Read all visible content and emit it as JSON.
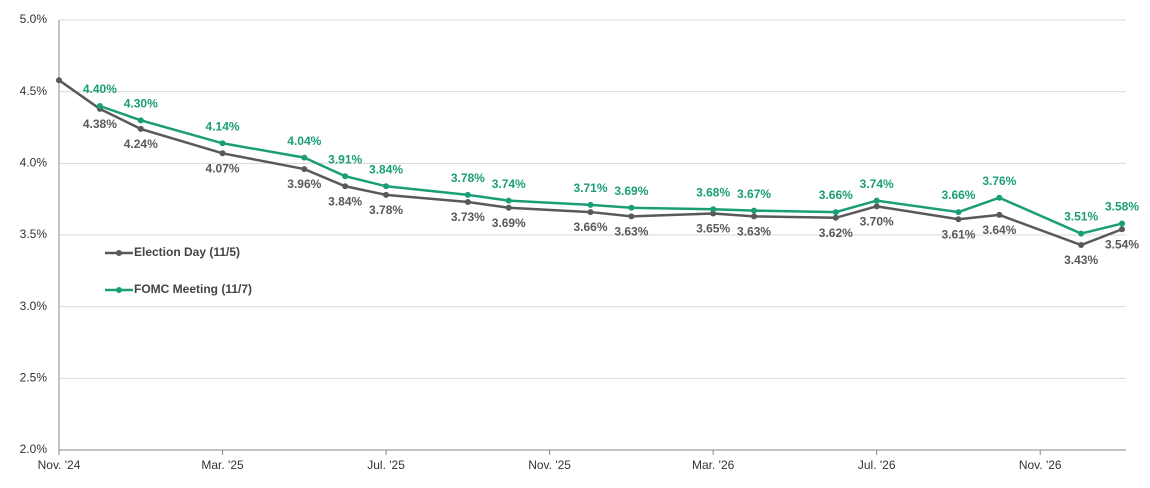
{
  "chart_data": {
    "type": "line",
    "xlim": [
      "2024-11",
      "2027-01"
    ],
    "xticks": [
      {
        "value": "2024-11",
        "label": "Nov. '24"
      },
      {
        "value": "2025-03",
        "label": "Mar. '25"
      },
      {
        "value": "2025-07",
        "label": "Jul. '25"
      },
      {
        "value": "2025-11",
        "label": "Nov. '25"
      },
      {
        "value": "2026-03",
        "label": "Mar. '26"
      },
      {
        "value": "2026-07",
        "label": "Jul. '26"
      },
      {
        "value": "2026-11",
        "label": "Nov. '26"
      }
    ],
    "ylim": [
      2.0,
      5.0
    ],
    "yticks": [
      {
        "value": 2.0,
        "label": "2.0%"
      },
      {
        "value": 2.5,
        "label": "2.5%"
      },
      {
        "value": 3.0,
        "label": "3.0%"
      },
      {
        "value": 3.5,
        "label": "3.5%"
      },
      {
        "value": 4.0,
        "label": "4.0%"
      },
      {
        "value": 4.5,
        "label": "4.5%"
      },
      {
        "value": 5.0,
        "label": "5.0%"
      }
    ],
    "grid": true,
    "legend": "left",
    "series": [
      {
        "name": "Election Day (11/5)",
        "color": "#595959",
        "x": [
          "2024-11",
          "2024-12",
          "2025-01",
          "2025-03",
          "2025-05",
          "2025-06",
          "2025-07",
          "2025-09",
          "2025-10",
          "2025-12",
          "2026-01",
          "2026-03",
          "2026-04",
          "2026-06",
          "2026-07",
          "2026-09",
          "2026-10",
          "2026-12",
          "2027-01"
        ],
        "values": [
          4.58,
          4.38,
          4.24,
          4.07,
          3.96,
          3.84,
          3.78,
          3.73,
          3.69,
          3.66,
          3.63,
          3.65,
          3.63,
          3.62,
          3.7,
          3.61,
          3.64,
          3.43,
          3.54
        ],
        "value_labels": [
          null,
          "4.38%",
          "4.24%",
          "4.07%",
          "3.96%",
          "3.84%",
          "3.78%",
          "3.73%",
          "3.69%",
          "3.66%",
          "3.63%",
          "3.65%",
          "3.63%",
          "3.62%",
          "3.70%",
          "3.61%",
          "3.64%",
          "3.43%",
          "3.54%"
        ]
      },
      {
        "name": "FOMC Meeting (11/7)",
        "color": "#1a9e77",
        "x": [
          "2024-12",
          "2025-01",
          "2025-03",
          "2025-05",
          "2025-06",
          "2025-07",
          "2025-09",
          "2025-10",
          "2025-12",
          "2026-01",
          "2026-03",
          "2026-04",
          "2026-06",
          "2026-07",
          "2026-09",
          "2026-10",
          "2026-12",
          "2027-01"
        ],
        "values": [
          4.4,
          4.3,
          4.14,
          4.04,
          3.91,
          3.84,
          3.78,
          3.74,
          3.71,
          3.69,
          3.68,
          3.67,
          3.66,
          3.74,
          3.66,
          3.76,
          3.51,
          3.58
        ],
        "value_labels": [
          "4.40%",
          "4.30%",
          "4.14%",
          "4.04%",
          "3.91%",
          "3.84%",
          "3.78%",
          "3.74%",
          "3.71%",
          "3.69%",
          "3.68%",
          "3.67%",
          "3.66%",
          "3.74%",
          "3.66%",
          "3.76%",
          "3.51%",
          "3.58%"
        ]
      }
    ]
  }
}
